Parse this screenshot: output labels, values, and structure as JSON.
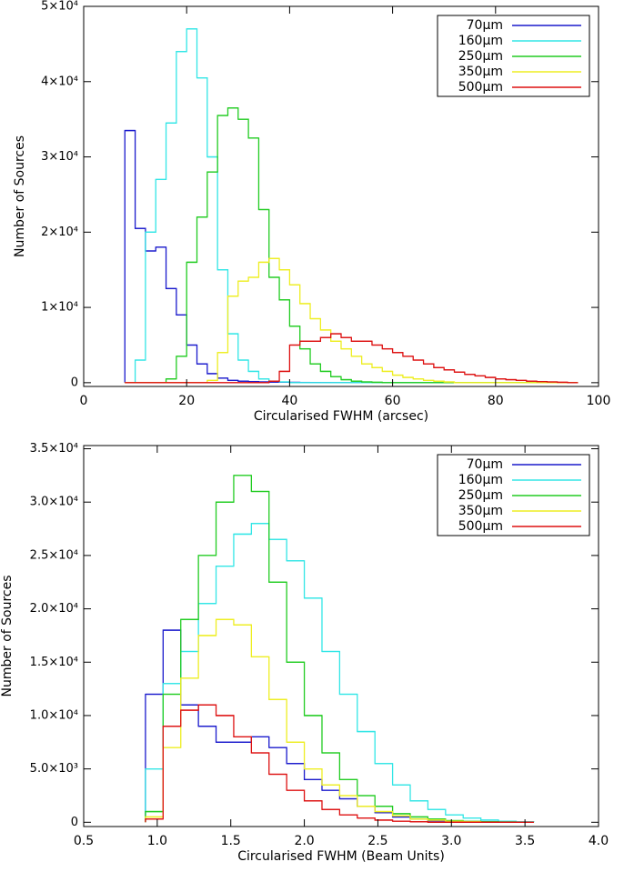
{
  "chart_data": [
    {
      "type": "histogram",
      "xlabel": "Circularised FWHM (arcsec)",
      "ylabel": "Number of Sources",
      "bins": [
        8,
        10,
        12,
        14,
        16,
        18,
        20,
        22,
        24,
        26,
        28,
        30,
        32,
        34,
        36,
        38,
        40,
        42,
        44,
        46,
        48,
        50,
        52,
        54,
        56,
        58,
        60,
        62,
        64,
        66,
        68,
        70,
        72,
        74,
        76,
        78,
        80,
        82,
        84,
        86,
        88,
        90,
        92,
        94,
        96
      ],
      "series": [
        {
          "name": "70μm",
          "color": "#1a1acc",
          "values": [
            33500,
            20500,
            17500,
            18000,
            12500,
            9000,
            5000,
            2500,
            1200,
            600,
            300,
            200,
            150,
            100,
            80,
            60,
            40,
            30,
            20,
            10,
            0,
            0,
            0,
            0,
            0,
            0,
            0,
            0,
            0,
            0,
            0,
            0,
            0,
            0,
            0,
            0,
            0,
            0,
            0,
            0,
            0,
            0,
            0,
            0
          ]
        },
        {
          "name": "160μm",
          "color": "#33e6e6",
          "values": [
            0,
            3000,
            20000,
            27000,
            34500,
            44000,
            47000,
            40500,
            30000,
            15000,
            6500,
            3000,
            1500,
            500,
            200,
            100,
            0,
            0,
            0,
            0,
            0,
            0,
            0,
            0,
            0,
            0,
            0,
            0,
            0,
            0,
            0,
            0,
            0,
            0,
            0,
            0,
            0,
            0,
            0,
            0,
            0,
            0,
            0,
            0
          ]
        },
        {
          "name": "250μm",
          "color": "#22cc22",
          "values": [
            0,
            0,
            0,
            0,
            500,
            3500,
            16000,
            22000,
            28000,
            35500,
            36500,
            35000,
            32500,
            23000,
            14000,
            11000,
            7500,
            4500,
            2500,
            1500,
            800,
            400,
            200,
            100,
            50,
            0,
            0,
            0,
            0,
            0,
            0,
            0,
            0,
            0,
            0,
            0,
            0,
            0,
            0,
            0,
            0,
            0,
            0,
            0
          ]
        },
        {
          "name": "350μm",
          "color": "#eeee22",
          "values": [
            0,
            0,
            0,
            0,
            0,
            0,
            0,
            0,
            300,
            4000,
            11500,
            13500,
            14000,
            16000,
            16500,
            15000,
            13000,
            10500,
            8500,
            7000,
            5500,
            4500,
            3500,
            2500,
            2000,
            1500,
            1000,
            700,
            500,
            300,
            200,
            100,
            0,
            0,
            0,
            0,
            0,
            0,
            0,
            0,
            0,
            0,
            0,
            0
          ]
        },
        {
          "name": "500μm",
          "color": "#dd1111",
          "values": [
            0,
            0,
            0,
            0,
            0,
            0,
            0,
            0,
            0,
            0,
            0,
            0,
            0,
            0,
            200,
            1500,
            5000,
            5500,
            5500,
            6000,
            6500,
            6000,
            5500,
            5500,
            5000,
            4500,
            4000,
            3500,
            3000,
            2500,
            2000,
            1700,
            1400,
            1100,
            900,
            700,
            500,
            400,
            300,
            200,
            150,
            100,
            50,
            0
          ]
        }
      ],
      "xlim": [
        0,
        100
      ],
      "ylim": [
        -500,
        50000
      ],
      "xticks": [
        0,
        20,
        40,
        60,
        80,
        100
      ],
      "yticks": [
        0,
        {
          "value": 10000,
          "label": "1×10⁴"
        },
        {
          "value": 20000,
          "label": "2×10⁴"
        },
        {
          "value": 30000,
          "label": "3×10⁴"
        },
        {
          "value": 40000,
          "label": "4×10⁴"
        },
        {
          "value": 50000,
          "label": "5×10⁴"
        }
      ],
      "legend": "upper right"
    },
    {
      "type": "histogram",
      "xlabel": "Circularised FWHM (Beam Units)",
      "ylabel": "Number of Sources",
      "bins": [
        0.92,
        1.04,
        1.16,
        1.28,
        1.4,
        1.52,
        1.64,
        1.76,
        1.88,
        2.0,
        2.12,
        2.24,
        2.36,
        2.48,
        2.6,
        2.72,
        2.84,
        2.96,
        3.08,
        3.2,
        3.32,
        3.44,
        3.56
      ],
      "series": [
        {
          "name": "70μm",
          "color": "#1a1acc",
          "values": [
            12000,
            18000,
            11000,
            9000,
            7500,
            7500,
            8000,
            7000,
            5500,
            4000,
            3000,
            2200,
            1500,
            900,
            500,
            300,
            150,
            80,
            40,
            0,
            0,
            0
          ]
        },
        {
          "name": "160μm",
          "color": "#33e6e6",
          "values": [
            5000,
            13000,
            16000,
            20500,
            24000,
            27000,
            28000,
            26500,
            24500,
            21000,
            16000,
            12000,
            8500,
            5500,
            3500,
            2000,
            1200,
            700,
            400,
            200,
            100,
            50
          ]
        },
        {
          "name": "250μm",
          "color": "#22cc22",
          "values": [
            1000,
            12000,
            19000,
            25000,
            30000,
            32500,
            31000,
            22500,
            15000,
            10000,
            6500,
            4000,
            2500,
            1500,
            800,
            500,
            300,
            150,
            80,
            40,
            20,
            0
          ]
        },
        {
          "name": "350μm",
          "color": "#eeee22",
          "values": [
            500,
            7000,
            13500,
            17500,
            19000,
            18500,
            15500,
            11500,
            7500,
            5000,
            3500,
            2500,
            1500,
            1000,
            600,
            300,
            200,
            100,
            50,
            0,
            0,
            0
          ]
        },
        {
          "name": "500μm",
          "color": "#dd1111",
          "values": [
            300,
            9000,
            10500,
            11000,
            10000,
            8000,
            6500,
            4500,
            3000,
            2000,
            1200,
            700,
            400,
            200,
            100,
            50,
            0,
            0,
            0,
            0,
            0,
            0
          ]
        }
      ],
      "xlim": [
        0.5,
        4.0
      ],
      "ylim": [
        -400,
        35300
      ],
      "xticks": [
        {
          "value": 0.5,
          "label": "0.5"
        },
        {
          "value": 1.0,
          "label": "1.0"
        },
        {
          "value": 1.5,
          "label": "1.5"
        },
        {
          "value": 2.0,
          "label": "2.0"
        },
        {
          "value": 2.5,
          "label": "2.5"
        },
        {
          "value": 3.0,
          "label": "3.0"
        },
        {
          "value": 3.5,
          "label": "3.5"
        },
        {
          "value": 4.0,
          "label": "4.0"
        }
      ],
      "yticks": [
        0,
        {
          "value": 5000,
          "label": "5.0×10³"
        },
        {
          "value": 10000,
          "label": "1.0×10⁴"
        },
        {
          "value": 15000,
          "label": "1.5×10⁴"
        },
        {
          "value": 20000,
          "label": "2.0×10⁴"
        },
        {
          "value": 25000,
          "label": "2.5×10⁴"
        },
        {
          "value": 30000,
          "label": "3.0×10⁴"
        },
        {
          "value": 35000,
          "label": "3.5×10⁴"
        }
      ],
      "legend": "upper right"
    }
  ]
}
